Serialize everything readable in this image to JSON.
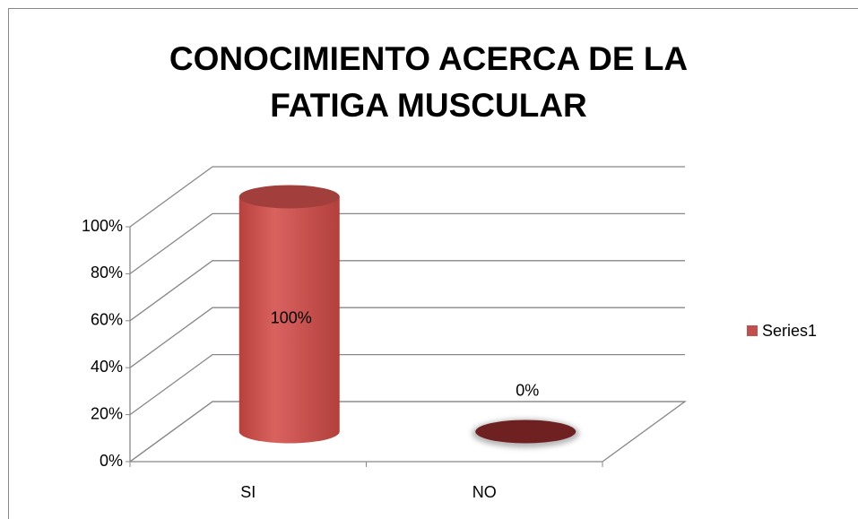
{
  "chart_data": {
    "type": "bar3d",
    "title": "CONOCIMIENTO ACERCA DE LA FATIGA MUSCULAR",
    "categories": [
      "SI",
      "NO"
    ],
    "series": [
      {
        "name": "Series1",
        "color": "#c0504d",
        "values": [
          100,
          0
        ],
        "value_labels": [
          "100%",
          "0%"
        ]
      }
    ],
    "ylim": [
      0,
      100
    ],
    "yticks": [
      {
        "value": 0,
        "label": "0%"
      },
      {
        "value": 20,
        "label": "20%"
      },
      {
        "value": 40,
        "label": "40%"
      },
      {
        "value": 60,
        "label": "60%"
      },
      {
        "value": 80,
        "label": "80%"
      },
      {
        "value": 100,
        "label": "100%"
      }
    ],
    "grid": true,
    "legend": "right"
  }
}
